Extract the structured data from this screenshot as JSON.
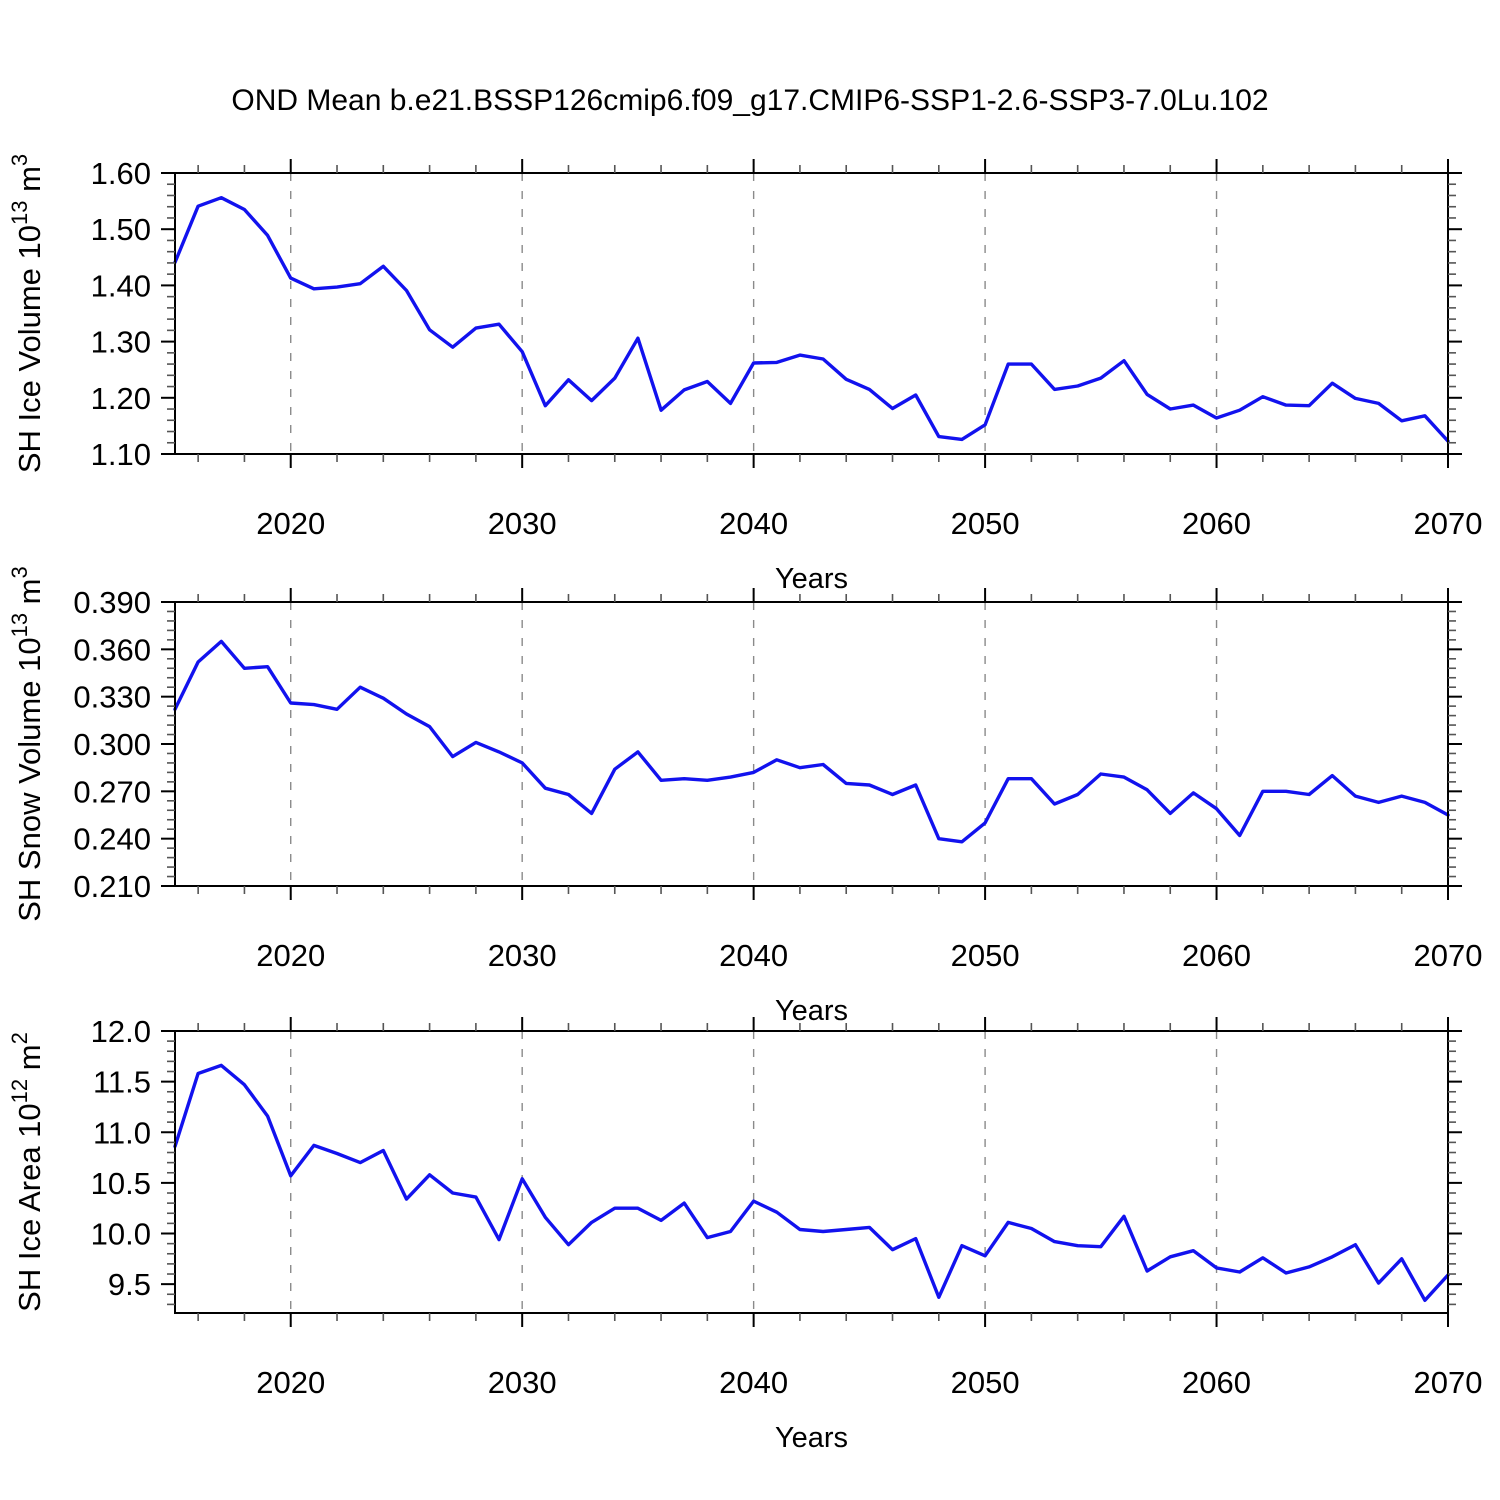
{
  "title": "OND Mean b.e21.BSSP126cmip6.f09_g17.CMIP6-SSP1-2.6-SSP3-7.0Lu.102",
  "styles": {
    "line_color": "#1212ee",
    "grid_color": "#8a8a8a",
    "axis_color": "#000000",
    "minor_tick_color": "#555555",
    "label_color": "#000000"
  },
  "years": [
    2015,
    2016,
    2017,
    2018,
    2019,
    2020,
    2021,
    2022,
    2023,
    2024,
    2025,
    2026,
    2027,
    2028,
    2029,
    2030,
    2031,
    2032,
    2033,
    2034,
    2035,
    2036,
    2037,
    2038,
    2039,
    2040,
    2041,
    2042,
    2043,
    2044,
    2045,
    2046,
    2047,
    2048,
    2049,
    2050,
    2051,
    2052,
    2053,
    2054,
    2055,
    2056,
    2057,
    2058,
    2059,
    2060,
    2061,
    2062,
    2063,
    2064,
    2065,
    2066,
    2067,
    2068,
    2069,
    2070
  ],
  "chart_data": [
    {
      "type": "line",
      "name": "SH Ice Volume",
      "ylabel": {
        "text": "SH Ice Volume",
        "scale_base": "10",
        "scale_exp": "13",
        "unit": "m",
        "unit_exp": "3"
      },
      "xlabel": "Years",
      "xlim": [
        2015,
        2070
      ],
      "ylim": [
        1.1,
        1.6
      ],
      "ytick_labels": [
        "1.10",
        "1.20",
        "1.30",
        "1.40",
        "1.50",
        "1.60"
      ],
      "ytick_values": [
        1.1,
        1.2,
        1.3,
        1.4,
        1.5,
        1.6
      ],
      "yminor_step": 0.02,
      "xtick_values": [
        2020,
        2030,
        2040,
        2050,
        2060,
        2070
      ],
      "xminor_step": 2,
      "grid_years": [
        2020,
        2030,
        2040,
        2050,
        2060
      ],
      "grid_on": "vertical-dashed",
      "legend": "none",
      "values": [
        1.441,
        1.541,
        1.556,
        1.535,
        1.489,
        1.413,
        1.394,
        1.397,
        1.403,
        1.434,
        1.391,
        1.321,
        1.29,
        1.324,
        1.331,
        1.282,
        1.186,
        1.232,
        1.195,
        1.235,
        1.306,
        1.178,
        1.214,
        1.229,
        1.19,
        1.262,
        1.263,
        1.276,
        1.269,
        1.233,
        1.215,
        1.181,
        1.205,
        1.131,
        1.126,
        1.152,
        1.26,
        1.26,
        1.215,
        1.221,
        1.235,
        1.266,
        1.206,
        1.18,
        1.187,
        1.164,
        1.178,
        1.202,
        1.187,
        1.186,
        1.226,
        1.199,
        1.19,
        1.159,
        1.168,
        1.123
      ]
    },
    {
      "type": "line",
      "name": "SH Snow Volume",
      "ylabel": {
        "text": "SH Snow Volume",
        "scale_base": "10",
        "scale_exp": "13",
        "unit": "m",
        "unit_exp": "3"
      },
      "xlabel": "Years",
      "xlim": [
        2015,
        2070
      ],
      "ylim": [
        0.21,
        0.39
      ],
      "ytick_labels": [
        "0.210",
        "0.240",
        "0.270",
        "0.300",
        "0.330",
        "0.360",
        "0.390"
      ],
      "ytick_values": [
        0.21,
        0.24,
        0.27,
        0.3,
        0.33,
        0.36,
        0.39
      ],
      "yminor_step": 0.006,
      "xtick_values": [
        2020,
        2030,
        2040,
        2050,
        2060,
        2070
      ],
      "xminor_step": 2,
      "grid_years": [
        2020,
        2030,
        2040,
        2050,
        2060
      ],
      "grid_on": "vertical-dashed",
      "legend": "none",
      "values": [
        0.322,
        0.352,
        0.365,
        0.348,
        0.349,
        0.326,
        0.325,
        0.322,
        0.336,
        0.329,
        0.319,
        0.311,
        0.292,
        0.301,
        0.295,
        0.288,
        0.272,
        0.268,
        0.256,
        0.284,
        0.295,
        0.277,
        0.278,
        0.277,
        0.279,
        0.282,
        0.29,
        0.285,
        0.287,
        0.275,
        0.274,
        0.268,
        0.274,
        0.24,
        0.238,
        0.25,
        0.278,
        0.278,
        0.262,
        0.268,
        0.281,
        0.279,
        0.271,
        0.256,
        0.269,
        0.259,
        0.242,
        0.27,
        0.27,
        0.268,
        0.28,
        0.267,
        0.263,
        0.267,
        0.263,
        0.255
      ]
    },
    {
      "type": "line",
      "name": "SH Ice Area",
      "ylabel": {
        "text": "SH Ice Area",
        "scale_base": "10",
        "scale_exp": "12",
        "unit": "m",
        "unit_exp": "2"
      },
      "xlabel": "Years",
      "xlim": [
        2015,
        2070
      ],
      "ylim": [
        9.215,
        12.0
      ],
      "ytick_labels": [
        "9.5",
        "10.0",
        "10.5",
        "11.0",
        "11.5",
        "12.0"
      ],
      "ytick_values": [
        9.5,
        10.0,
        10.5,
        11.0,
        11.5,
        12.0
      ],
      "yminor_step": 0.1,
      "xtick_values": [
        2020,
        2030,
        2040,
        2050,
        2060,
        2070
      ],
      "xminor_step": 2,
      "grid_years": [
        2020,
        2030,
        2040,
        2050,
        2060
      ],
      "grid_on": "vertical-dashed",
      "legend": "none",
      "values": [
        10.86,
        11.58,
        11.66,
        11.47,
        11.16,
        10.57,
        10.87,
        10.79,
        10.7,
        10.82,
        10.34,
        10.58,
        10.4,
        10.36,
        9.94,
        10.54,
        10.16,
        9.89,
        10.11,
        10.25,
        10.25,
        10.13,
        10.3,
        9.96,
        10.02,
        10.32,
        10.21,
        10.04,
        10.02,
        10.04,
        10.06,
        9.84,
        9.95,
        9.37,
        9.88,
        9.78,
        10.11,
        10.05,
        9.92,
        9.88,
        9.87,
        10.17,
        9.63,
        9.77,
        9.83,
        9.66,
        9.62,
        9.76,
        9.61,
        9.67,
        9.77,
        9.89,
        9.51,
        9.75,
        9.34,
        9.59
      ]
    }
  ]
}
